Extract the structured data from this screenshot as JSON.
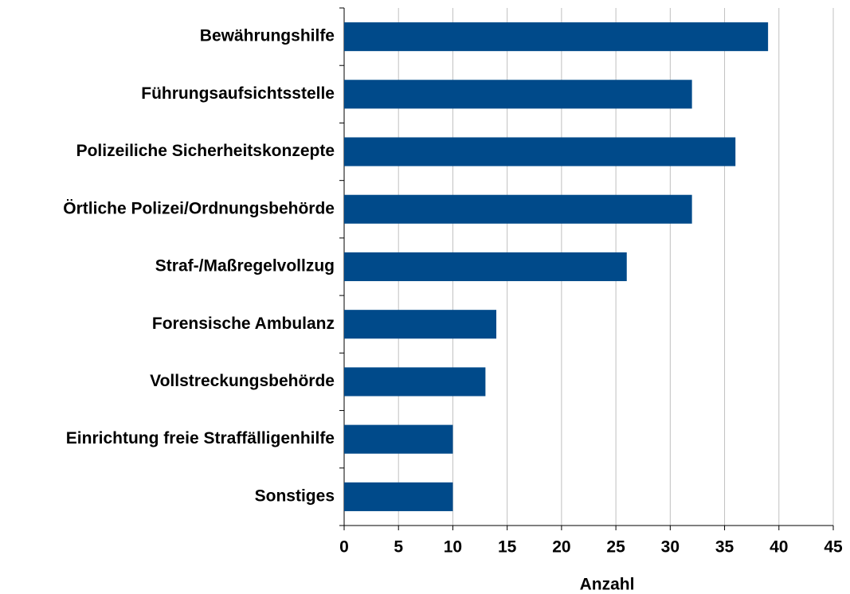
{
  "chart_data": {
    "type": "bar",
    "orientation": "horizontal",
    "x_axis_label": "Anzahl",
    "categories": [
      "Bewährungshilfe",
      "Führungsaufsichtsstelle",
      "Polizeiliche Sicherheitskonzepte",
      "Örtliche Polizei/Ordnungsbehörde",
      "Straf-/Maßregelvollzug",
      "Forensische Ambulanz",
      "Vollstreckungsbehörde",
      "Einrichtung freie Straffälligenhilfe",
      "Sonstiges"
    ],
    "values": [
      39,
      32,
      36,
      32,
      26,
      14,
      13,
      10,
      10
    ],
    "color": "#004a8a",
    "xlim": [
      0,
      45
    ],
    "xticks": [
      0,
      5,
      10,
      15,
      20,
      25,
      30,
      35,
      40,
      45
    ],
    "grid": true
  }
}
